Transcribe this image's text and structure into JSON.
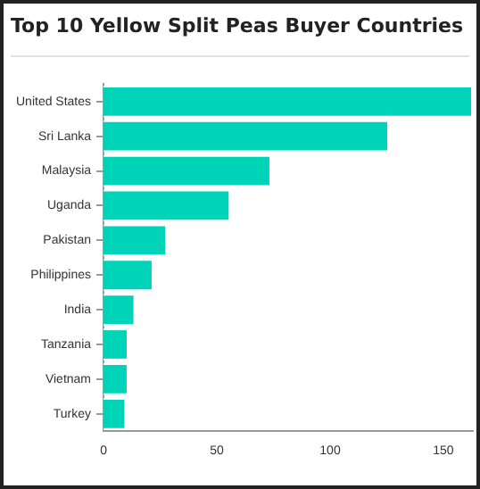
{
  "chart_data": {
    "type": "bar",
    "orientation": "horizontal",
    "title": "Top 10 Yellow Split Peas Buyer Countries",
    "categories": [
      "United States",
      "Sri Lanka",
      "Malaysia",
      "Uganda",
      "Pakistan",
      "Philippines",
      "India",
      "Tanzania",
      "Vietnam",
      "Turkey"
    ],
    "values": [
      163,
      126,
      74,
      56,
      28,
      22,
      14,
      11,
      11,
      10
    ],
    "color": "#00d4b8",
    "xlim": [
      0,
      163
    ],
    "xticks": [
      0,
      50,
      100,
      150
    ],
    "grid": false,
    "legend": false
  }
}
